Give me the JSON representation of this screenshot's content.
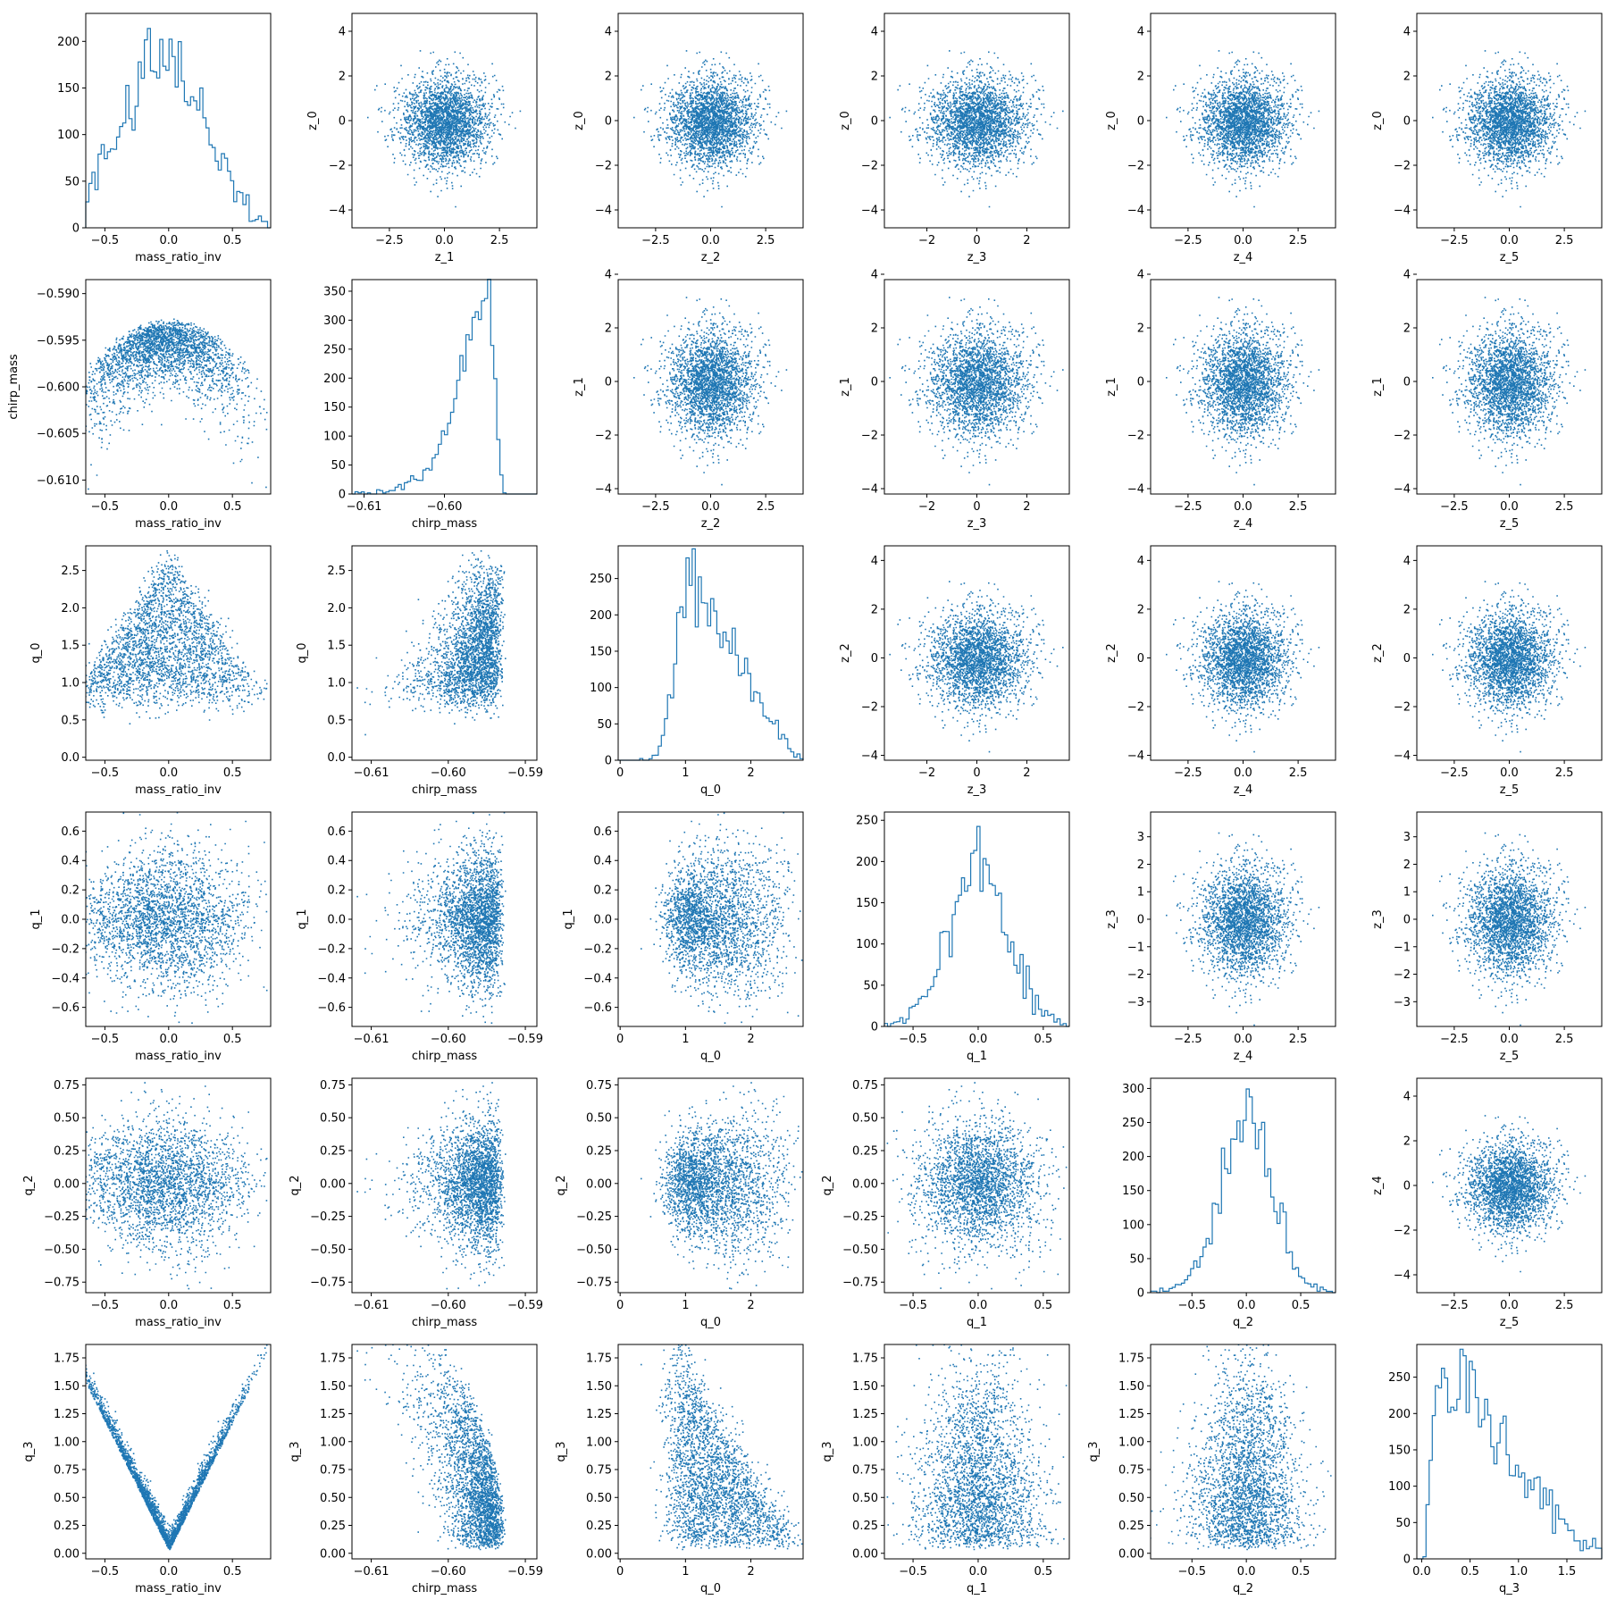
{
  "chart_data": {
    "type": "pair-grid",
    "layout": "lower triangle: scatter of row-variable vs column-variable; diagonal: step histogram; upper triangle: scatter of independent z variables",
    "lower_variables": [
      "mass_ratio_inv",
      "chirp_mass",
      "q_0",
      "q_1",
      "q_2",
      "q_3"
    ],
    "marker_color": "#1f77b4",
    "n_points": 10000,
    "grid": false,
    "variables": {
      "mass_ratio_inv": {
        "range": [
          -0.65,
          0.8
        ],
        "ticks": [
          -0.5,
          0.0,
          0.5
        ],
        "tick_labels": [
          "−0.5",
          "0.0",
          "0.5"
        ]
      },
      "chirp_mass": {
        "range": [
          -0.6125,
          -0.5885
        ],
        "ticks": [
          -0.61,
          -0.6,
          -0.59
        ],
        "tick_labels": [
          "−0.61",
          "−0.60",
          "−0.59"
        ]
      },
      "chirp_mass_hist_range": {
        "range": [
          -0.6115,
          -0.5885
        ],
        "ticks": [
          -0.61,
          -0.6
        ],
        "tick_labels": [
          "−0.61",
          "−0.60"
        ]
      },
      "chirp_mass_row": {
        "range": [
          -0.6115,
          -0.5885
        ],
        "ticks": [
          -0.59,
          -0.595,
          -0.6,
          -0.605,
          -0.61
        ],
        "tick_labels": [
          "−0.590",
          "−0.595",
          "−0.600",
          "−0.605",
          "−0.610"
        ]
      },
      "q_0": {
        "range": [
          -0.03,
          2.8
        ],
        "ticks": [
          0,
          1,
          2
        ],
        "tick_labels": [
          "0",
          "1",
          "2"
        ],
        "yticks": [
          0.0,
          0.5,
          1.0,
          1.5,
          2.0,
          2.5
        ],
        "ytick_labels": [
          "0.0",
          "0.5",
          "1.0",
          "1.5",
          "2.0",
          "2.5"
        ],
        "yrange": [
          -0.04,
          2.83
        ]
      },
      "q_1": {
        "range": [
          -0.72,
          0.7
        ],
        "ticks": [
          -0.5,
          0.0,
          0.5
        ],
        "tick_labels": [
          "−0.5",
          "0.0",
          "0.5"
        ],
        "yticks": [
          -0.6,
          -0.4,
          -0.2,
          0.0,
          0.2,
          0.4,
          0.6
        ],
        "ytick_labels": [
          "−0.6",
          "−0.4",
          "−0.2",
          "0.0",
          "0.2",
          "0.4",
          "0.6"
        ],
        "yrange": [
          -0.73,
          0.73
        ]
      },
      "q_2": {
        "range": [
          -0.88,
          0.82
        ],
        "ticks": [
          -0.5,
          0.0,
          0.5
        ],
        "tick_labels": [
          "−0.5",
          "0.0",
          "0.5"
        ],
        "yticks": [
          -0.75,
          -0.5,
          -0.25,
          0.0,
          0.25,
          0.5,
          0.75
        ],
        "ytick_labels": [
          "−0.75",
          "−0.50",
          "−0.25",
          "0.00",
          "0.25",
          "0.50",
          "0.75"
        ],
        "yrange": [
          -0.83,
          0.8
        ]
      },
      "q_3": {
        "range": [
          -0.05,
          1.86
        ],
        "ticks": [
          0.0,
          0.5,
          1.0,
          1.5
        ],
        "tick_labels": [
          "0.0",
          "0.5",
          "1.0",
          "1.5"
        ],
        "yticks": [
          0.0,
          0.25,
          0.5,
          0.75,
          1.0,
          1.25,
          1.5,
          1.75
        ],
        "ytick_labels": [
          "0.00",
          "0.25",
          "0.50",
          "0.75",
          "1.00",
          "1.25",
          "1.50",
          "1.75"
        ],
        "yrange": [
          -0.05,
          1.87
        ]
      },
      "z": {
        "range": [
          -4.2,
          4.2
        ],
        "ticks": [
          -2.5,
          0.0,
          2.5
        ],
        "tick_labels": [
          "−2.5",
          "0.0",
          "2.5"
        ],
        "ticks_alt": [
          -2,
          0,
          2
        ],
        "tick_labels_alt": [
          "−2",
          "0",
          "2"
        ],
        "yticks": [
          -4,
          -2,
          0,
          2,
          4
        ],
        "ytick_labels": [
          "−4",
          "−2",
          "0",
          "2",
          "4"
        ]
      },
      "z_3_row": {
        "yticks": [
          -3,
          -2,
          -1,
          0,
          1,
          2,
          3
        ],
        "ytick_labels": [
          "−3",
          "−2",
          "−1",
          "0",
          "1",
          "2",
          "3"
        ],
        "yrange": [
          -3.9,
          3.9
        ]
      }
    },
    "histograms": [
      {
        "variable": "mass_ratio_inv",
        "ylim": [
          0,
          230
        ],
        "yticks": [
          0,
          50,
          100,
          150,
          200
        ],
        "ytick_labels": [
          "0",
          "50",
          "100",
          "150",
          "200"
        ],
        "peak": 225,
        "shape": "flat-top bell",
        "center": -0.05
      },
      {
        "variable": "chirp_mass",
        "ylim": [
          0,
          370
        ],
        "yticks": [
          0,
          50,
          100,
          150,
          200,
          250,
          300,
          350
        ],
        "ytick_labels": [
          "0",
          "50",
          "100",
          "150",
          "200",
          "250",
          "300",
          "350"
        ],
        "peak": 355,
        "shape": "bell",
        "center": -0.5983
      },
      {
        "variable": "q_0",
        "ylim": [
          0,
          295
        ],
        "yticks": [
          0,
          50,
          100,
          150,
          200,
          250
        ],
        "ytick_labels": [
          "0",
          "50",
          "100",
          "150",
          "200",
          "250"
        ],
        "peak": 280,
        "shape": "bell",
        "center": 1.35
      },
      {
        "variable": "q_1",
        "ylim": [
          0,
          260
        ],
        "yticks": [
          0,
          50,
          100,
          150,
          200,
          250
        ],
        "ytick_labels": [
          "0",
          "50",
          "100",
          "150",
          "200",
          "250"
        ],
        "peak": 245,
        "shape": "bell",
        "center": 0.0
      },
      {
        "variable": "q_2",
        "ylim": [
          0,
          315
        ],
        "yticks": [
          0,
          50,
          100,
          150,
          200,
          250,
          300
        ],
        "ytick_labels": [
          "0",
          "50",
          "100",
          "150",
          "200",
          "250",
          "300"
        ],
        "peak": 295,
        "shape": "bell",
        "center": 0.0
      },
      {
        "variable": "q_3",
        "ylim": [
          0,
          295
        ],
        "yticks": [
          0,
          50,
          100,
          150,
          200,
          250
        ],
        "ytick_labels": [
          "0",
          "50",
          "100",
          "150",
          "200",
          "250"
        ],
        "peak": 280,
        "shape": "right-skewed",
        "center": 0.25
      }
    ],
    "scatter_panels_lower": [
      {
        "x": "mass_ratio_inv",
        "y": "chirp_mass",
        "pattern": "dome: upper edge near −0.5925, lower edge curving down at the ends"
      },
      {
        "x": "mass_ratio_inv",
        "y": "q_0",
        "pattern": "triangle peaking at center"
      },
      {
        "x": "mass_ratio_inv",
        "y": "q_1",
        "pattern": "round blob"
      },
      {
        "x": "mass_ratio_inv",
        "y": "q_2",
        "pattern": "round blob"
      },
      {
        "x": "mass_ratio_inv",
        "y": "q_3",
        "pattern": "V shape, q_3 ≈ 2.3·|x|"
      },
      {
        "x": "chirp_mass",
        "y": "q_0",
        "pattern": "vertical blob"
      },
      {
        "x": "chirp_mass",
        "y": "q_1",
        "pattern": "vertical blob"
      },
      {
        "x": "chirp_mass",
        "y": "q_2",
        "pattern": "vertical blob"
      },
      {
        "x": "chirp_mass",
        "y": "q_3",
        "pattern": "vertical blob, denser at low q_3"
      },
      {
        "x": "q_0",
        "y": "q_1",
        "pattern": "fan widening with q_0"
      },
      {
        "x": "q_0",
        "y": "q_2",
        "pattern": "fan widening with q_0"
      },
      {
        "x": "q_0",
        "y": "q_3",
        "pattern": "triangular blob, rising with q_0"
      },
      {
        "x": "q_1",
        "y": "q_2",
        "pattern": "round blob"
      },
      {
        "x": "q_1",
        "y": "q_3",
        "pattern": "blob, denser at low q_3"
      },
      {
        "x": "q_2",
        "y": "q_3",
        "pattern": "blob, denser at low q_3"
      }
    ],
    "scatter_panels_upper": [
      {
        "row": 0,
        "y": "z_0",
        "x_labels": [
          "z_1",
          "z_2",
          "z_3",
          "z_4",
          "z_5"
        ]
      },
      {
        "row": 1,
        "y": "z_1",
        "x_labels": [
          "z_2",
          "z_3",
          "z_4",
          "z_5"
        ]
      },
      {
        "row": 2,
        "y": "z_2",
        "x_labels": [
          "z_3",
          "z_4",
          "z_5"
        ]
      },
      {
        "row": 3,
        "y": "z_3",
        "x_labels": [
          "z_4",
          "z_5"
        ]
      },
      {
        "row": 4,
        "y": "z_4",
        "x_labels": [
          "z_5"
        ]
      }
    ]
  }
}
